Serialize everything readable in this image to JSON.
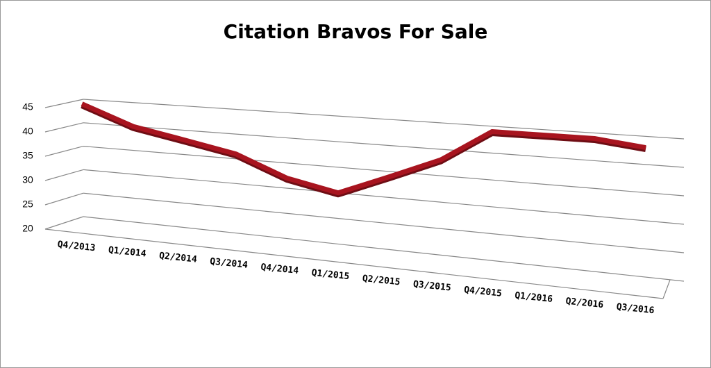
{
  "chart_data": {
    "type": "line",
    "title": "Citation Bravos For Sale",
    "categories": [
      "Q4/2013",
      "Q1/2014",
      "Q2/2014",
      "Q3/2014",
      "Q4/2014",
      "Q1/2015",
      "Q2/2015",
      "Q3/2015",
      "Q4/2015",
      "Q1/2016",
      "Q2/2016",
      "Q3/2016"
    ],
    "series": [
      {
        "name": "Citation Bravos",
        "color": "#a8141f",
        "values": [
          44,
          40,
          38,
          36,
          32,
          30,
          34,
          38,
          44,
          44,
          44,
          43
        ]
      }
    ],
    "ylim": [
      20,
      45
    ],
    "yticks": [
      20,
      25,
      30,
      35,
      40,
      45
    ],
    "grid": true
  }
}
